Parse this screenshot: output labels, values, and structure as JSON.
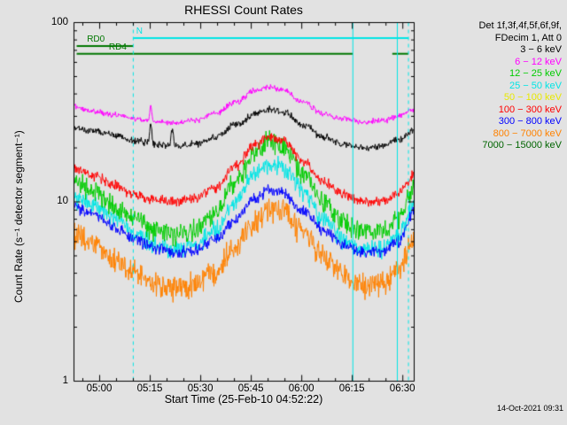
{
  "timestamp": "14-Oct-2021 09:31",
  "chart_data": {
    "type": "line",
    "title": "RHESSI Count Rates",
    "xlabel": "Start Time (25-Feb-10 04:52:22)",
    "ylabel": "Count Rate (s⁻¹ detector segment⁻¹)",
    "y_scale": "log",
    "ylim": [
      1,
      100
    ],
    "y_ticks": [
      {
        "v": 1,
        "label": "1"
      },
      {
        "v": 10,
        "label": "10"
      },
      {
        "v": 100,
        "label": "100"
      }
    ],
    "x_range_minutes": [
      0,
      101
    ],
    "x_ticks": [
      {
        "t": 7.633,
        "label": "05:00"
      },
      {
        "t": 22.633,
        "label": "05:15"
      },
      {
        "t": 37.633,
        "label": "05:30"
      },
      {
        "t": 52.633,
        "label": "05:45"
      },
      {
        "t": 67.633,
        "label": "06:00"
      },
      {
        "t": 82.633,
        "label": "06:15"
      },
      {
        "t": 97.633,
        "label": "06:30"
      }
    ],
    "legend": {
      "header": [
        "Det 1f,3f,4f,5f,6f,9f,",
        "FDecim 1, Att 0"
      ],
      "entries": [
        {
          "label": "3 − 6 keV",
          "color": "#000000"
        },
        {
          "label": "6 − 12 keV",
          "color": "#ff00ff"
        },
        {
          "label": "12 − 25 keV",
          "color": "#00cc00"
        },
        {
          "label": "25 − 50 keV",
          "color": "#00e5e5"
        },
        {
          "label": "50 − 100 keV",
          "color": "#e8e800"
        },
        {
          "label": "100 − 300 keV",
          "color": "#ff0000"
        },
        {
          "label": "300 − 800 keV",
          "color": "#0000ff"
        },
        {
          "label": "800 − 7000 keV",
          "color": "#ff8200"
        },
        {
          "label": "7000 − 15000 keV",
          "color": "#006400"
        }
      ]
    },
    "flag_bars": [
      {
        "label": "N",
        "color": "#00e5e5",
        "level": 82,
        "label_t": 18.6,
        "segments": [
          [
            17.6,
            99.3
          ]
        ]
      },
      {
        "label": "RD0",
        "color": "#007700",
        "level": 74,
        "label_t": 4.0,
        "segments": [
          [
            0.8,
            17.5
          ]
        ]
      },
      {
        "label": "RD4",
        "color": "#007700",
        "level": 67,
        "label_t": 10.5,
        "segments": [
          [
            0.8,
            82.8
          ],
          [
            94.5,
            99.3
          ]
        ]
      }
    ],
    "vlines": [
      {
        "t": 17.6,
        "style": "dashed",
        "color": "#00e5e5"
      },
      {
        "t": 82.8,
        "style": "solid",
        "color": "#00e5e5"
      },
      {
        "t": 96.0,
        "style": "solid",
        "color": "#00e5e5"
      },
      {
        "t": 99.3,
        "style": "dashed",
        "color": "#00e5e5"
      }
    ],
    "series": [
      {
        "name": "800 − 7000 keV",
        "color": "#ff8200",
        "noise": 0.2,
        "points": [
          [
            0,
            6.5
          ],
          [
            6,
            5.8
          ],
          [
            12,
            4.8
          ],
          [
            18,
            4.0
          ],
          [
            24,
            3.5
          ],
          [
            30,
            3.3
          ],
          [
            36,
            3.5
          ],
          [
            42,
            4.2
          ],
          [
            48,
            5.8
          ],
          [
            54,
            8.0
          ],
          [
            58,
            9.3
          ],
          [
            62,
            8.8
          ],
          [
            68,
            6.8
          ],
          [
            74,
            5.0
          ],
          [
            80,
            4.0
          ],
          [
            86,
            3.4
          ],
          [
            92,
            3.5
          ],
          [
            96,
            4.0
          ],
          [
            101,
            6.2
          ]
        ]
      },
      {
        "name": "25 − 50 keV",
        "color": "#00e5e5",
        "noise": 0.15,
        "points": [
          [
            0,
            10.5
          ],
          [
            6,
            9.5
          ],
          [
            12,
            8.0
          ],
          [
            18,
            6.6
          ],
          [
            24,
            5.8
          ],
          [
            30,
            5.4
          ],
          [
            36,
            5.7
          ],
          [
            42,
            7.0
          ],
          [
            48,
            10.0
          ],
          [
            54,
            14.5
          ],
          [
            58,
            16.5
          ],
          [
            62,
            15.5
          ],
          [
            68,
            11.5
          ],
          [
            74,
            8.0
          ],
          [
            80,
            6.2
          ],
          [
            86,
            5.4
          ],
          [
            92,
            5.6
          ],
          [
            96,
            6.5
          ],
          [
            101,
            9.5
          ]
        ]
      },
      {
        "name": "300 − 800 keV",
        "color": "#0000ff",
        "noise": 0.09,
        "points": [
          [
            0,
            9.2
          ],
          [
            6,
            8.5
          ],
          [
            12,
            7.2
          ],
          [
            18,
            6.2
          ],
          [
            24,
            5.5
          ],
          [
            30,
            5.2
          ],
          [
            36,
            5.4
          ],
          [
            42,
            6.2
          ],
          [
            48,
            8.0
          ],
          [
            54,
            10.5
          ],
          [
            58,
            11.8
          ],
          [
            62,
            11.2
          ],
          [
            68,
            9.0
          ],
          [
            74,
            7.0
          ],
          [
            80,
            5.8
          ],
          [
            86,
            5.2
          ],
          [
            92,
            5.3
          ],
          [
            96,
            6.0
          ],
          [
            101,
            8.8
          ]
        ]
      },
      {
        "name": "12 − 25 keV",
        "color": "#00cc00",
        "noise": 0.16,
        "points": [
          [
            0,
            13
          ],
          [
            6,
            11.5
          ],
          [
            12,
            9.5
          ],
          [
            18,
            8.0
          ],
          [
            24,
            7.0
          ],
          [
            30,
            6.6
          ],
          [
            36,
            7.0
          ],
          [
            42,
            8.5
          ],
          [
            48,
            13
          ],
          [
            54,
            19
          ],
          [
            58,
            22
          ],
          [
            62,
            20.5
          ],
          [
            68,
            14.5
          ],
          [
            74,
            10
          ],
          [
            80,
            7.8
          ],
          [
            86,
            6.8
          ],
          [
            92,
            7.0
          ],
          [
            96,
            8.0
          ],
          [
            101,
            12
          ]
        ]
      },
      {
        "name": "100 − 300 keV",
        "color": "#ff0000",
        "noise": 0.08,
        "points": [
          [
            0,
            15.5
          ],
          [
            6,
            14
          ],
          [
            12,
            12.5
          ],
          [
            18,
            11
          ],
          [
            24,
            10.3
          ],
          [
            30,
            10
          ],
          [
            36,
            10.5
          ],
          [
            42,
            12
          ],
          [
            48,
            16
          ],
          [
            54,
            21
          ],
          [
            58,
            23.5
          ],
          [
            62,
            22
          ],
          [
            68,
            17
          ],
          [
            74,
            13
          ],
          [
            80,
            11
          ],
          [
            86,
            10
          ],
          [
            92,
            10.2
          ],
          [
            96,
            11
          ],
          [
            101,
            14
          ]
        ]
      },
      {
        "name": "3 − 6 keV",
        "color": "#000000",
        "noise": 0.055,
        "spikes": [
          {
            "t": 22.8,
            "f": 0.32
          },
          {
            "t": 29.2,
            "f": 0.26
          }
        ],
        "points": [
          [
            0,
            26
          ],
          [
            6,
            25
          ],
          [
            12,
            23.5
          ],
          [
            18,
            22
          ],
          [
            24,
            21
          ],
          [
            30,
            20.5
          ],
          [
            36,
            21
          ],
          [
            42,
            23
          ],
          [
            48,
            27
          ],
          [
            54,
            31
          ],
          [
            58,
            33
          ],
          [
            62,
            32
          ],
          [
            68,
            27
          ],
          [
            74,
            23
          ],
          [
            80,
            21
          ],
          [
            86,
            20
          ],
          [
            92,
            20.5
          ],
          [
            96,
            22
          ],
          [
            101,
            25
          ]
        ]
      },
      {
        "name": "6 − 12 keV",
        "color": "#ff00ff",
        "noise": 0.045,
        "spikes": [
          {
            "t": 22.8,
            "f": 0.22
          }
        ],
        "points": [
          [
            0,
            34
          ],
          [
            6,
            32
          ],
          [
            12,
            30.5
          ],
          [
            18,
            29
          ],
          [
            24,
            28
          ],
          [
            30,
            27.5
          ],
          [
            36,
            28.5
          ],
          [
            42,
            31
          ],
          [
            48,
            36
          ],
          [
            54,
            42
          ],
          [
            58,
            44
          ],
          [
            62,
            42
          ],
          [
            68,
            36
          ],
          [
            74,
            31
          ],
          [
            80,
            29
          ],
          [
            86,
            28
          ],
          [
            92,
            28.5
          ],
          [
            96,
            30
          ],
          [
            101,
            33
          ]
        ]
      }
    ]
  }
}
